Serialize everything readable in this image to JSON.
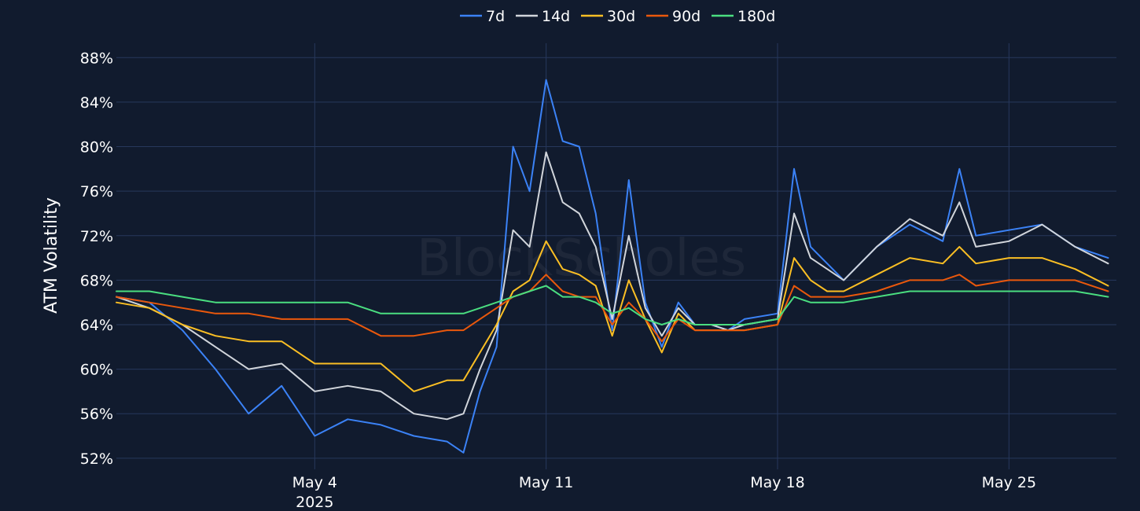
{
  "watermark": "BlockScholes",
  "chart_data": {
    "type": "line",
    "title": "",
    "xlabel": "",
    "ylabel": "ATM Volatility",
    "ylim": [
      51,
      90
    ],
    "xlim": [
      "2025-04-28",
      "2025-05-28T06:00"
    ],
    "yticks": [
      52,
      56,
      60,
      64,
      68,
      72,
      76,
      80,
      84,
      88
    ],
    "ytick_format": "%",
    "xticks": [
      {
        "x": "2025-05-04",
        "label": "May 4",
        "sublabel": "2025"
      },
      {
        "x": "2025-05-11",
        "label": "May 11",
        "sublabel": ""
      },
      {
        "x": "2025-05-18",
        "label": "May 18",
        "sublabel": ""
      },
      {
        "x": "2025-05-25",
        "label": "May 25",
        "sublabel": ""
      }
    ],
    "grid": true,
    "legend_position": "top-center",
    "x": [
      "2025-04-28",
      "2025-04-29",
      "2025-04-30",
      "2025-05-01",
      "2025-05-02",
      "2025-05-03",
      "2025-05-04",
      "2025-05-05",
      "2025-05-06",
      "2025-05-07",
      "2025-05-08",
      "2025-05-08T12:00",
      "2025-05-09",
      "2025-05-09T12:00",
      "2025-05-10",
      "2025-05-10T12:00",
      "2025-05-11",
      "2025-05-11T12:00",
      "2025-05-12",
      "2025-05-12T12:00",
      "2025-05-13",
      "2025-05-13T12:00",
      "2025-05-14",
      "2025-05-14T12:00",
      "2025-05-15",
      "2025-05-15T12:00",
      "2025-05-16",
      "2025-05-16T12:00",
      "2025-05-17",
      "2025-05-18",
      "2025-05-18T12:00",
      "2025-05-19",
      "2025-05-19T12:00",
      "2025-05-20",
      "2025-05-21",
      "2025-05-22",
      "2025-05-23",
      "2025-05-23T12:00",
      "2025-05-24",
      "2025-05-25",
      "2025-05-26",
      "2025-05-27",
      "2025-05-28"
    ],
    "series": [
      {
        "name": "7d",
        "color": "#3b82f6",
        "values": [
          66.5,
          66.0,
          63.5,
          60.0,
          56.0,
          58.5,
          54.0,
          55.5,
          55.0,
          54.0,
          53.5,
          52.5,
          58.0,
          62.0,
          80.0,
          76.0,
          86.0,
          80.5,
          80.0,
          74.0,
          63.5,
          77.0,
          66.0,
          62.0,
          66.0,
          64.0,
          64.0,
          63.5,
          64.5,
          65.0,
          78.0,
          71.0,
          69.5,
          68.0,
          71.0,
          73.0,
          71.5,
          78.0,
          72.0,
          72.5,
          73.0,
          71.0,
          70.0
        ]
      },
      {
        "name": "14d",
        "color": "#d1d5db",
        "values": [
          66.5,
          65.5,
          64.0,
          62.0,
          60.0,
          60.5,
          58.0,
          58.5,
          58.0,
          56.0,
          55.5,
          56.0,
          60.0,
          63.5,
          72.5,
          71.0,
          79.5,
          75.0,
          74.0,
          71.0,
          64.5,
          72.0,
          65.5,
          63.0,
          65.5,
          64.0,
          64.0,
          63.5,
          64.0,
          64.5,
          74.0,
          70.0,
          69.0,
          68.0,
          71.0,
          73.5,
          72.0,
          75.0,
          71.0,
          71.5,
          73.0,
          71.0,
          69.5
        ]
      },
      {
        "name": "30d",
        "color": "#fbbf24",
        "values": [
          66.0,
          65.5,
          64.0,
          63.0,
          62.5,
          62.5,
          60.5,
          60.5,
          60.5,
          58.0,
          59.0,
          59.0,
          61.5,
          64.0,
          67.0,
          68.0,
          71.5,
          69.0,
          68.5,
          67.5,
          63.0,
          68.0,
          64.5,
          61.5,
          65.0,
          63.5,
          63.5,
          63.5,
          63.5,
          64.0,
          70.0,
          68.0,
          67.0,
          67.0,
          68.5,
          70.0,
          69.5,
          71.0,
          69.5,
          70.0,
          70.0,
          69.0,
          67.5
        ]
      },
      {
        "name": "90d",
        "color": "#ea580c",
        "values": [
          66.5,
          66.0,
          65.5,
          65.0,
          65.0,
          64.5,
          64.5,
          64.5,
          63.0,
          63.0,
          63.5,
          63.5,
          64.5,
          65.5,
          66.5,
          67.0,
          68.5,
          67.0,
          66.5,
          66.5,
          64.0,
          66.0,
          64.5,
          62.5,
          64.5,
          63.5,
          63.5,
          63.5,
          63.5,
          64.0,
          67.5,
          66.5,
          66.5,
          66.5,
          67.0,
          68.0,
          68.0,
          68.5,
          67.5,
          68.0,
          68.0,
          68.0,
          67.0
        ]
      },
      {
        "name": "180d",
        "color": "#4ade80",
        "values": [
          67.0,
          67.0,
          66.5,
          66.0,
          66.0,
          66.0,
          66.0,
          66.0,
          65.0,
          65.0,
          65.0,
          65.0,
          65.5,
          66.0,
          66.5,
          67.0,
          67.5,
          66.5,
          66.5,
          66.0,
          65.0,
          65.5,
          64.5,
          64.0,
          64.5,
          64.0,
          64.0,
          64.0,
          64.0,
          64.5,
          66.5,
          66.0,
          66.0,
          66.0,
          66.5,
          67.0,
          67.0,
          67.0,
          67.0,
          67.0,
          67.0,
          67.0,
          66.5
        ]
      }
    ]
  },
  "colors": {
    "background": "#111b2e",
    "grid": "#27385c",
    "text": "#ffffff"
  }
}
